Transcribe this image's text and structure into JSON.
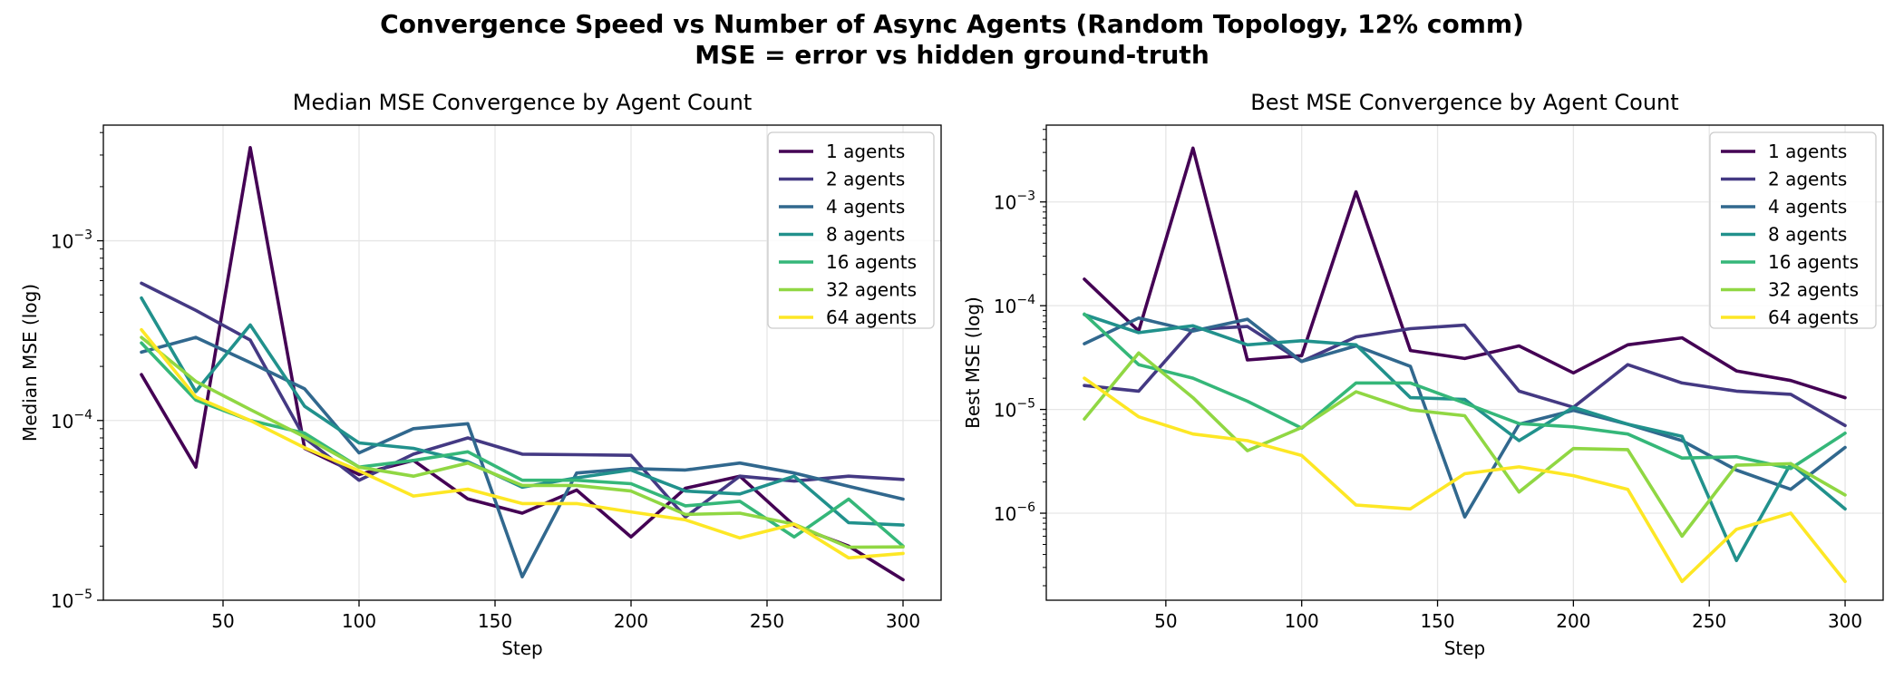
{
  "figure": {
    "title_line1": "Convergence Speed vs Number of Async Agents (Random Topology, 12% comm)",
    "title_line2": "MSE = error vs hidden ground-truth"
  },
  "colors": {
    "1 agents": "#440154",
    "2 agents": "#443983",
    "4 agents": "#31688e",
    "8 agents": "#21918c",
    "16 agents": "#35b779",
    "32 agents": "#90d743",
    "64 agents": "#fde725"
  },
  "chart_data": [
    {
      "type": "line",
      "title": "Median MSE Convergence by Agent Count",
      "xlabel": "Step",
      "ylabel": "Median MSE (log)",
      "yscale": "log",
      "xlim": [
        6,
        314
      ],
      "ylim": [
        1e-05,
        0.0044
      ],
      "xticks": [
        50,
        100,
        150,
        200,
        250,
        300
      ],
      "yticks": [
        {
          "v": 1e-05,
          "mant": "10",
          "exp": "−5"
        },
        {
          "v": 0.0001,
          "mant": "10",
          "exp": "−4"
        },
        {
          "v": 0.001,
          "mant": "10",
          "exp": "−3"
        }
      ],
      "legend_loc": "upper right",
      "grid": true,
      "x": [
        20,
        40,
        60,
        80,
        100,
        120,
        140,
        160,
        180,
        200,
        220,
        240,
        260,
        280,
        300
      ],
      "series": [
        {
          "name": "1 agents",
          "values": [
            0.00018,
            5.5e-05,
            0.0033,
            7e-05,
            5e-05,
            6e-05,
            3.66e-05,
            3.05e-05,
            4.1e-05,
            2.25e-05,
            4.2e-05,
            4.9e-05,
            2.6e-05,
            2e-05,
            1.3e-05
          ]
        },
        {
          "name": "2 agents",
          "values": [
            0.00058,
            0.00041,
            0.00028,
            8e-05,
            4.65e-05,
            6.5e-05,
            8e-05,
            6.5e-05,
            6.45e-05,
            6.4e-05,
            2.9e-05,
            4.9e-05,
            4.6e-05,
            4.9e-05,
            4.7e-05
          ]
        },
        {
          "name": "4 agents",
          "values": [
            0.00024,
            0.00029,
            0.00021,
            0.00015,
            6.6e-05,
            9e-05,
            9.6e-05,
            1.35e-05,
            5.1e-05,
            5.4e-05,
            5.3e-05,
            5.8e-05,
            5.1e-05,
            4.3e-05,
            3.65e-05
          ]
        },
        {
          "name": "8 agents",
          "values": [
            0.00048,
            0.000145,
            0.00034,
            0.00012,
            7.5e-05,
            7e-05,
            5.9e-05,
            4.25e-05,
            4.8e-05,
            5.3e-05,
            4.05e-05,
            3.9e-05,
            4.9e-05,
            2.7e-05,
            2.62e-05
          ]
        },
        {
          "name": "16 agents",
          "values": [
            0.00027,
            0.00013,
            0.0001,
            8.5e-05,
            5.5e-05,
            6e-05,
            6.7e-05,
            4.65e-05,
            4.65e-05,
            4.45e-05,
            3.35e-05,
            3.55e-05,
            2.25e-05,
            3.65e-05,
            2e-05
          ]
        },
        {
          "name": "32 agents",
          "values": [
            0.00029,
            0.000165,
            0.000115,
            8.1e-05,
            5.5e-05,
            4.9e-05,
            5.8e-05,
            4.35e-05,
            4.35e-05,
            4.05e-05,
            3e-05,
            3.05e-05,
            2.65e-05,
            1.97e-05,
            1.98e-05
          ]
        },
        {
          "name": "64 agents",
          "values": [
            0.00032,
            0.000135,
            0.0001,
            7.05e-05,
            5.25e-05,
            3.8e-05,
            4.15e-05,
            3.45e-05,
            3.45e-05,
            3.1e-05,
            2.8e-05,
            2.22e-05,
            2.65e-05,
            1.72e-05,
            1.82e-05
          ]
        }
      ]
    },
    {
      "type": "line",
      "title": "Best MSE Convergence by Agent Count",
      "xlabel": "Step",
      "ylabel": "Best MSE (log)",
      "yscale": "log",
      "xlim": [
        6,
        314
      ],
      "ylim": [
        1.45e-07,
        0.0055
      ],
      "xticks": [
        50,
        100,
        150,
        200,
        250,
        300
      ],
      "yticks": [
        {
          "v": 1e-06,
          "mant": "10",
          "exp": "−6"
        },
        {
          "v": 1e-05,
          "mant": "10",
          "exp": "−5"
        },
        {
          "v": 0.0001,
          "mant": "10",
          "exp": "−4"
        },
        {
          "v": 0.001,
          "mant": "10",
          "exp": "−3"
        }
      ],
      "legend_loc": "upper right",
      "grid": true,
      "x": [
        20,
        40,
        60,
        80,
        100,
        120,
        140,
        160,
        180,
        200,
        220,
        240,
        260,
        280,
        300
      ],
      "series": [
        {
          "name": "1 agents",
          "values": [
            0.00018,
            5.7e-05,
            0.0033,
            3e-05,
            3.3e-05,
            0.00125,
            3.7e-05,
            3.1e-05,
            4.1e-05,
            2.25e-05,
            4.2e-05,
            4.9e-05,
            2.35e-05,
            1.9e-05,
            1.3e-05
          ]
        },
        {
          "name": "2 agents",
          "values": [
            1.7e-05,
            1.5e-05,
            5.9e-05,
            6.3e-05,
            2.9e-05,
            5e-05,
            6e-05,
            6.5e-05,
            1.5e-05,
            1.05e-05,
            2.7e-05,
            1.8e-05,
            1.5e-05,
            1.4e-05,
            7e-06
          ]
        },
        {
          "name": "4 agents",
          "values": [
            4.3e-05,
            7.6e-05,
            5.7e-05,
            7.4e-05,
            2.9e-05,
            4.1e-05,
            2.6e-05,
            9.2e-07,
            7.2e-06,
            9.8e-06,
            7.2e-06,
            5e-06,
            2.6e-06,
            1.7e-06,
            4.3e-06
          ]
        },
        {
          "name": "8 agents",
          "values": [
            8.2e-05,
            5.5e-05,
            6.4e-05,
            4.2e-05,
            4.6e-05,
            4.2e-05,
            1.3e-05,
            1.25e-05,
            5e-06,
            1.05e-05,
            7.2e-06,
            5.5e-06,
            3.5e-07,
            3e-06,
            1.1e-06
          ]
        },
        {
          "name": "16 agents",
          "values": [
            8.3e-05,
            2.7e-05,
            2e-05,
            1.2e-05,
            6.6e-06,
            1.8e-05,
            1.8e-05,
            1.15e-05,
            7.3e-06,
            6.8e-06,
            5.8e-06,
            3.4e-06,
            3.5e-06,
            2.7e-06,
            5.9e-06
          ]
        },
        {
          "name": "32 agents",
          "values": [
            8.1e-06,
            3.5e-05,
            1.3e-05,
            4e-06,
            6.7e-06,
            1.48e-05,
            9.9e-06,
            8.7e-06,
            1.6e-06,
            4.2e-06,
            4.1e-06,
            6e-07,
            2.9e-06,
            3e-06,
            1.5e-06
          ]
        },
        {
          "name": "64 agents",
          "values": [
            2e-05,
            8.5e-06,
            5.8e-06,
            5e-06,
            3.6e-06,
            1.2e-06,
            1.1e-06,
            2.4e-06,
            2.8e-06,
            2.3e-06,
            1.7e-06,
            2.2e-07,
            7e-07,
            1e-06,
            2.2e-07
          ]
        }
      ]
    }
  ]
}
